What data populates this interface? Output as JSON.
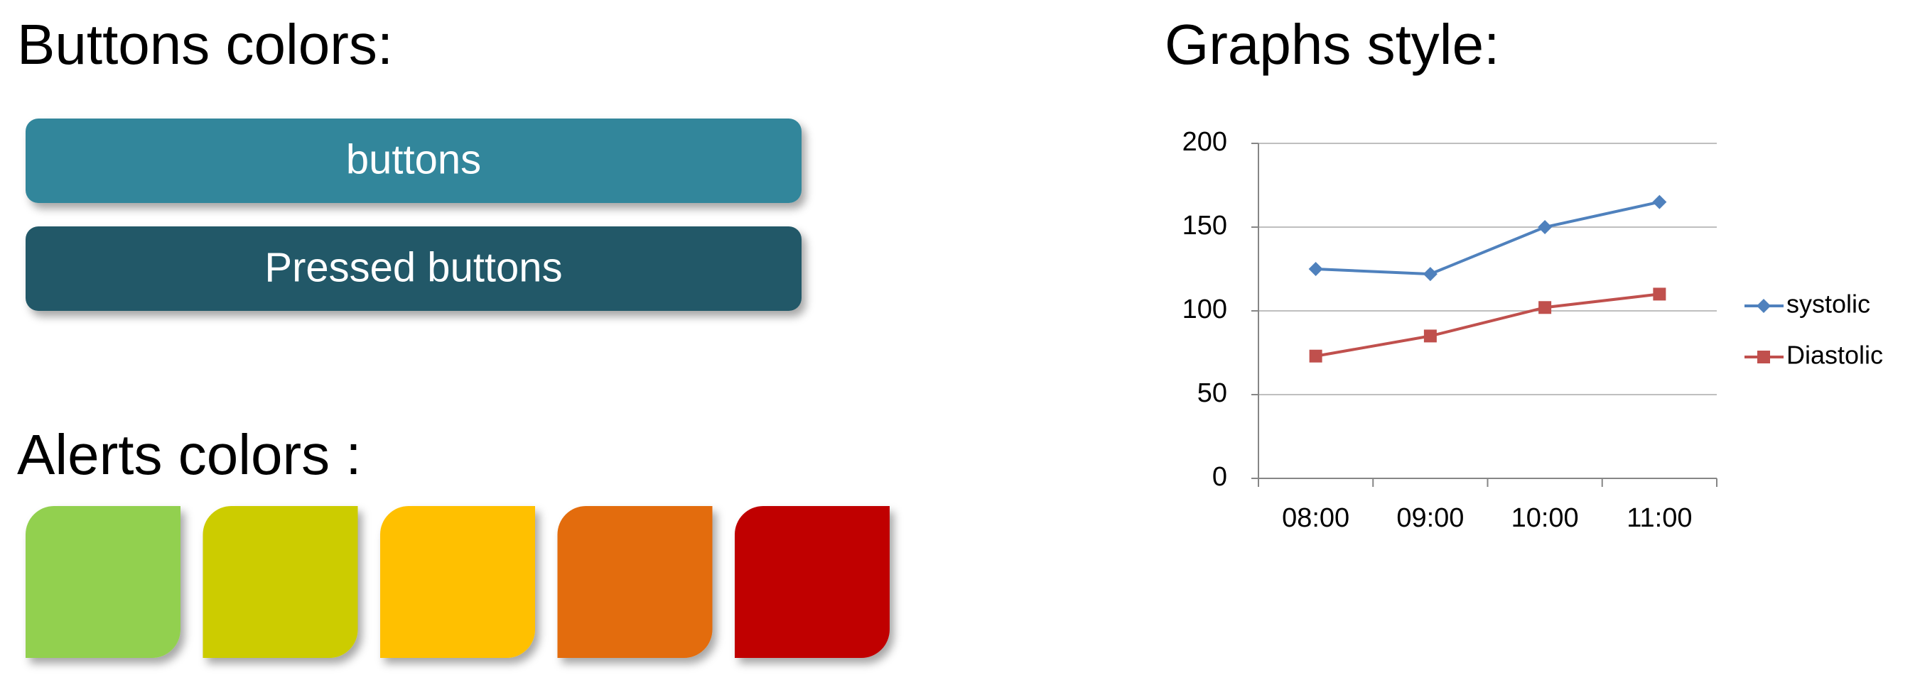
{
  "buttons_section": {
    "title": "Buttons colors:",
    "buttons": [
      {
        "label": "buttons",
        "color": "#31869b"
      },
      {
        "label": "Pressed buttons",
        "color": "#215968"
      }
    ]
  },
  "alerts_section": {
    "title": "Alerts colors :",
    "colors": [
      "#92d050",
      "#cccc00",
      "#ffc000",
      "#e36c09",
      "#c00000"
    ]
  },
  "graph_section": {
    "title": "Graphs style:"
  },
  "chart_data": {
    "type": "line",
    "categories": [
      "08:00",
      "09:00",
      "10:00",
      "11:00"
    ],
    "series": [
      {
        "name": "systolic",
        "color": "#4f81bd",
        "marker": "diamond",
        "values": [
          125,
          122,
          150,
          165
        ]
      },
      {
        "name": "Diastolic",
        "color": "#c0504d",
        "marker": "square",
        "values": [
          73,
          85,
          102,
          110
        ]
      }
    ],
    "ylim": [
      0,
      200
    ],
    "yticks": [
      0,
      50,
      100,
      150,
      200
    ],
    "grid": true,
    "legend": "right"
  }
}
